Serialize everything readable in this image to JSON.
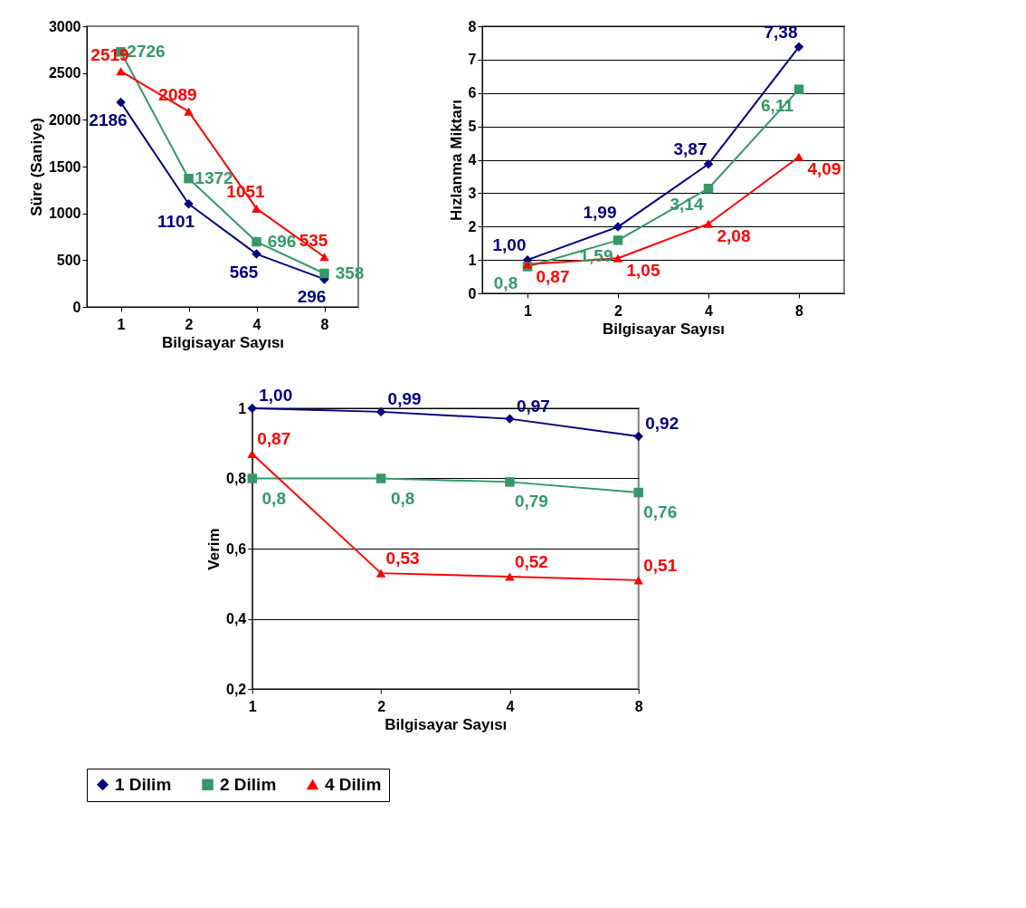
{
  "chart_data": [
    {
      "type": "line",
      "xlabel": "Bilgisayar Sayısı",
      "ylabel": "Süre (Saniye)",
      "categories": [
        "1",
        "2",
        "4",
        "8"
      ],
      "ylim": [
        0,
        3000
      ],
      "yticks": [
        0,
        500,
        1000,
        1500,
        2000,
        2500,
        3000
      ],
      "grid": false,
      "legend": "bottom",
      "data_labels": true,
      "series": [
        {
          "name": "1 Dilim",
          "color": "#000080",
          "marker": "diamond",
          "values": [
            2186,
            1101,
            565,
            296
          ]
        },
        {
          "name": "2 Dilim",
          "color": "#339966",
          "marker": "square",
          "values": [
            2726,
            1372,
            696,
            358
          ]
        },
        {
          "name": "4 Dilim",
          "color": "#ff0000",
          "marker": "triangle",
          "values": [
            2519,
            2089,
            1051,
            535
          ]
        }
      ]
    },
    {
      "type": "line",
      "xlabel": "Bilgisayar Sayısı",
      "ylabel": "Hızlanma Miktarı",
      "categories": [
        "1",
        "2",
        "4",
        "8"
      ],
      "ylim": [
        0,
        8
      ],
      "yticks": [
        0,
        1,
        2,
        3,
        4,
        5,
        6,
        7,
        8
      ],
      "grid": "y",
      "legend": "bottom",
      "series": [
        {
          "name": "1 Dilim",
          "color": "#000080",
          "marker": "diamond",
          "values": [
            1.0,
            1.99,
            3.87,
            7.38
          ],
          "value_labels": [
            "1,00",
            "1,99",
            "3,87",
            "7,38"
          ]
        },
        {
          "name": "2 Dilim",
          "color": "#339966",
          "marker": "square",
          "values": [
            0.8,
            1.59,
            3.14,
            6.11
          ],
          "value_labels": [
            "0,8",
            "1,59",
            "3,14",
            "6,11"
          ]
        },
        {
          "name": "4 Dilim",
          "color": "#ff0000",
          "marker": "triangle",
          "values": [
            0.87,
            1.05,
            2.08,
            4.09
          ],
          "value_labels": [
            "0,87",
            "1,05",
            "2,08",
            "4,09"
          ]
        }
      ]
    },
    {
      "type": "line",
      "xlabel": "Bilgisayar Sayısı",
      "ylabel": "Verim",
      "categories": [
        "1",
        "2",
        "4",
        "8"
      ],
      "ylim": [
        0.2,
        1
      ],
      "yticks": [
        {
          "value": 0.2,
          "label": "0,2"
        },
        {
          "value": 0.4,
          "label": "0,4"
        },
        {
          "value": 0.6,
          "label": "0,6"
        },
        {
          "value": 0.8,
          "label": "0,8"
        },
        1
      ],
      "grid": "y",
      "legend": "bottom",
      "series": [
        {
          "name": "1 Dilim",
          "color": "#000080",
          "marker": "diamond",
          "values": [
            1.0,
            0.99,
            0.97,
            0.92
          ],
          "value_labels": [
            "1,00",
            "0,99",
            "0,97",
            "0,92"
          ]
        },
        {
          "name": "2 Dilim",
          "color": "#339966",
          "marker": "square",
          "values": [
            0.8,
            0.8,
            0.79,
            0.76
          ],
          "value_labels": [
            "0,8",
            "0,8",
            "0,79",
            "0,76"
          ]
        },
        {
          "name": "4 Dilim",
          "color": "#ff0000",
          "marker": "triangle",
          "values": [
            0.87,
            0.53,
            0.52,
            0.51
          ],
          "value_labels": [
            "0,87",
            "0,53",
            "0,52",
            "0,51"
          ]
        }
      ]
    }
  ]
}
